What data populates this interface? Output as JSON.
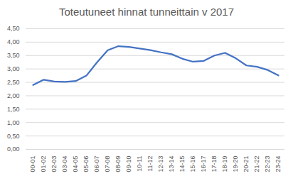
{
  "chart_data": {
    "type": "line",
    "title": "Toteutuneet hinnat tunneittain v 2017",
    "categories": [
      "00-01",
      "01-02",
      "02-03",
      "03-04",
      "04-05",
      "05-06",
      "06-07",
      "07-08",
      "08-09",
      "09-10",
      "10-11",
      "11-12",
      "12-13",
      "13-14",
      "14-15",
      "15-16",
      "16-17",
      "17-18",
      "18-19",
      "19-20",
      "20-21",
      "21-22",
      "22-23",
      "23-24"
    ],
    "values": [
      2.4,
      2.6,
      2.53,
      2.52,
      2.55,
      2.75,
      3.25,
      3.7,
      3.85,
      3.82,
      3.76,
      3.7,
      3.62,
      3.55,
      3.38,
      3.27,
      3.3,
      3.5,
      3.6,
      3.4,
      3.13,
      3.08,
      2.96,
      2.76
    ],
    "color": "#4472c4",
    "ylim": [
      0,
      4.5
    ],
    "yticks": [
      {
        "value": 0,
        "label": "0,00"
      },
      {
        "value": 0.5,
        "label": "0,50"
      },
      {
        "value": 1,
        "label": "1,00"
      },
      {
        "value": 1.5,
        "label": "1,50"
      },
      {
        "value": 2,
        "label": "2,00"
      },
      {
        "value": 2.5,
        "label": "2,50"
      },
      {
        "value": 3,
        "label": "3,00"
      },
      {
        "value": 3.5,
        "label": "3,50"
      },
      {
        "value": 4,
        "label": "4,00"
      },
      {
        "value": 4.5,
        "label": "4,50"
      }
    ],
    "grid": true
  }
}
